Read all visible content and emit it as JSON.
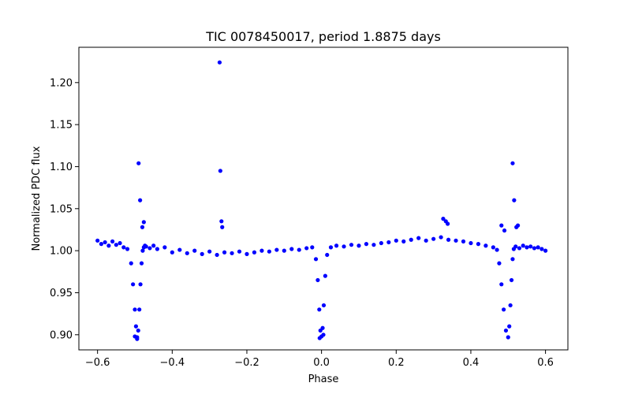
{
  "chart_data": {
    "type": "scatter",
    "title": "TIC 0078450017, period 1.8875 days",
    "xlabel": "Phase",
    "ylabel": "Normalized PDC flux",
    "xlim": [
      -0.65,
      0.66
    ],
    "ylim": [
      0.882,
      1.242
    ],
    "xticks": [
      -0.6,
      -0.4,
      -0.2,
      0.0,
      0.2,
      0.4,
      0.6
    ],
    "xtick_labels": [
      "−0.6",
      "−0.4",
      "−0.2",
      "0.0",
      "0.2",
      "0.4",
      "0.6"
    ],
    "yticks": [
      0.9,
      0.95,
      1.0,
      1.05,
      1.1,
      1.15,
      1.2
    ],
    "ytick_labels": [
      "0.90",
      "0.95",
      "1.00",
      "1.05",
      "1.10",
      "1.15",
      "1.20"
    ],
    "grid": false,
    "marker_color": "#0000ff",
    "series": [
      {
        "x": [
          -0.6,
          -0.59,
          -0.58,
          -0.57,
          -0.56,
          -0.55,
          -0.54,
          -0.53,
          -0.52,
          -0.51,
          -0.505,
          -0.5,
          -0.497,
          -0.494,
          -0.491,
          -0.488,
          -0.485,
          -0.482,
          -0.479,
          -0.476,
          -0.473,
          -0.47,
          -0.46,
          -0.45,
          -0.44,
          -0.42,
          -0.4,
          -0.38,
          -0.36,
          -0.34,
          -0.32,
          -0.3,
          -0.28,
          -0.26,
          -0.24,
          -0.22,
          -0.2,
          -0.18,
          -0.16,
          -0.14,
          -0.12,
          -0.1,
          -0.08,
          -0.06,
          -0.04,
          -0.025,
          -0.015,
          -0.01,
          -0.006,
          -0.003,
          0.0,
          0.003,
          0.006,
          0.01,
          0.015,
          0.025,
          0.04,
          0.06,
          0.08,
          0.1,
          0.12,
          0.14,
          0.16,
          0.18,
          0.2,
          0.22,
          0.24,
          0.26,
          0.28,
          0.3,
          0.32,
          0.34,
          0.36,
          0.38,
          0.4,
          0.42,
          0.44,
          0.46,
          0.47,
          0.476,
          0.482,
          0.488,
          0.494,
          0.5,
          0.503,
          0.506,
          0.509,
          0.512,
          0.515,
          0.52,
          0.53,
          0.54,
          0.55,
          0.56,
          0.57,
          0.58,
          0.59,
          0.6
        ],
        "y": [
          1.012,
          1.008,
          1.01,
          1.006,
          1.011,
          1.007,
          1.009,
          1.004,
          1.002,
          0.985,
          0.96,
          0.93,
          0.91,
          0.897,
          0.905,
          0.93,
          0.96,
          0.985,
          1.0,
          1.004,
          1.006,
          1.005,
          1.003,
          1.006,
          1.002,
          1.004,
          0.998,
          1.001,
          0.997,
          1.0,
          0.996,
          0.999,
          0.995,
          0.998,
          0.997,
          0.999,
          0.996,
          0.998,
          1.0,
          0.999,
          1.001,
          1.0,
          1.002,
          1.001,
          1.003,
          1.004,
          0.99,
          0.965,
          0.93,
          0.905,
          0.898,
          0.908,
          0.935,
          0.97,
          0.995,
          1.004,
          1.006,
          1.005,
          1.007,
          1.006,
          1.008,
          1.007,
          1.009,
          1.01,
          1.012,
          1.011,
          1.013,
          1.015,
          1.012,
          1.014,
          1.016,
          1.013,
          1.012,
          1.011,
          1.009,
          1.008,
          1.006,
          1.004,
          1.001,
          0.985,
          0.96,
          0.93,
          0.905,
          0.897,
          0.91,
          0.935,
          0.965,
          0.99,
          1.002,
          1.005,
          1.003,
          1.006,
          1.004,
          1.005,
          1.003,
          1.004,
          1.002,
          1.0
        ]
      },
      {
        "x": [
          -0.49,
          -0.486,
          -0.48,
          -0.476,
          -0.273,
          -0.271,
          -0.268,
          -0.266,
          -0.5,
          -0.494,
          0.512,
          0.516,
          0.522,
          0.526,
          0.482,
          0.49,
          0.326,
          0.333,
          0.338,
          -0.005,
          0.005
        ],
        "y": [
          1.104,
          1.06,
          1.028,
          1.034,
          1.224,
          1.095,
          1.035,
          1.028,
          0.898,
          0.895,
          1.104,
          1.06,
          1.028,
          1.03,
          1.03,
          1.024,
          1.038,
          1.035,
          1.032,
          0.896,
          0.9
        ]
      }
    ]
  }
}
